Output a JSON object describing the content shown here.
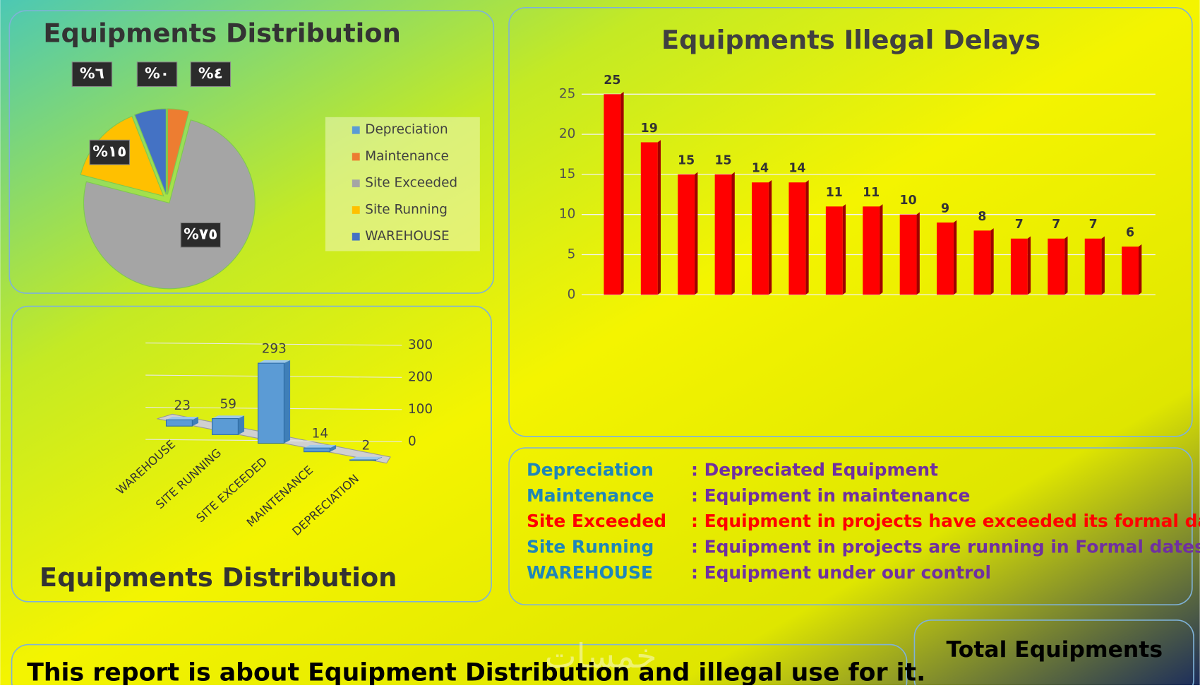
{
  "chart_data": [
    {
      "type": "pie",
      "title": "Equipments Distribution",
      "categories": [
        "Depreciation",
        "Maintenance",
        "Site Exceeded",
        "Site Running",
        "WAREHOUSE"
      ],
      "values": [
        0,
        4,
        75,
        15,
        6
      ],
      "value_labels": [
        "%٠",
        "%٤",
        "%٧٥",
        "%١٥",
        "%٦"
      ],
      "colors": [
        "#5b9bd5",
        "#ed7d31",
        "#a5a5a5",
        "#ffc000",
        "#4472c4"
      ]
    },
    {
      "type": "bar3d",
      "title": "Equipments Distribution",
      "categories": [
        "WAREHOUSE",
        "SITE RUNNING",
        "SITE EXCEEDED",
        "MAINTENANCE",
        "DEPRECIATION"
      ],
      "values": [
        23,
        59,
        293,
        14,
        2
      ],
      "color": "#5b9bd5",
      "ylim": [
        0,
        300
      ],
      "yticks": [
        0,
        100,
        200,
        300
      ],
      "grid": true
    },
    {
      "type": "bar",
      "title": "Equipments Illegal Delays",
      "categories": [
        null,
        null,
        null,
        null,
        null,
        null,
        null,
        null,
        null,
        null,
        null,
        null,
        null,
        null,
        null
      ],
      "values": [
        25,
        19,
        15,
        15,
        14,
        14,
        11,
        11,
        10,
        9,
        8,
        7,
        7,
        7,
        6
      ],
      "color": "#ff0000",
      "ylim": [
        0,
        25
      ],
      "yticks": [
        0,
        5,
        10,
        15,
        20,
        25
      ],
      "grid": true
    }
  ],
  "definitions": [
    {
      "term": "Depreciation",
      "description": ": Depreciated Equipment",
      "term_color": "#1f86b8",
      "color": "#7030a0"
    },
    {
      "term": "Maintenance",
      "description": ": Equipment in maintenance",
      "term_color": "#1f86b8",
      "color": "#7030a0"
    },
    {
      "term": "Site Exceeded",
      "description": ": Equipment in projects have exceeded its formal date.",
      "term_color": "#ff0000",
      "color": "#ff0000"
    },
    {
      "term": "Site Running",
      "description": ": Equipment in projects are running in Formal dates.",
      "term_color": "#1f86b8",
      "color": "#7030a0"
    },
    {
      "term": "WAREHOUSE",
      "description": ": Equipment under our control",
      "term_color": "#1f86b8",
      "color": "#7030a0"
    }
  ],
  "report": "This report is about Equipment Distribution and illegal use for it.",
  "total_title": "Total Equipments",
  "watermark": "خمسات"
}
